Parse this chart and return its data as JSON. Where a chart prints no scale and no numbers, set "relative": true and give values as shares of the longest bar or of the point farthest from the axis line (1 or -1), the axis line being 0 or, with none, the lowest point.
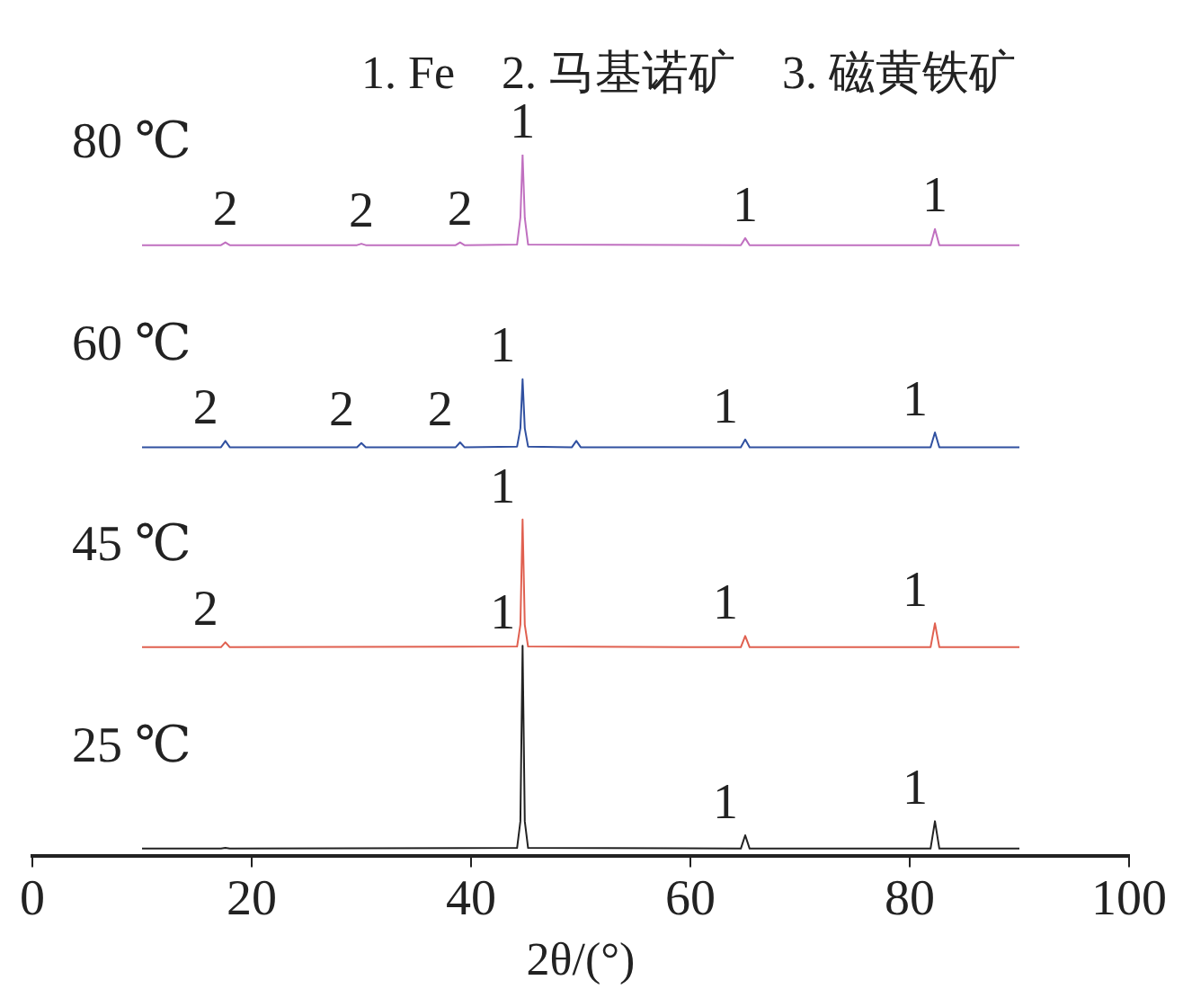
{
  "chart_data": {
    "type": "line",
    "relative": true,
    "xlabel": "2θ/(°)",
    "xlim": [
      0,
      100
    ],
    "xticks": [
      0,
      20,
      40,
      60,
      80,
      100
    ],
    "grid": false,
    "legend": false,
    "marker": "none",
    "line_style": "solid",
    "series": [
      {
        "name": "25 ℃",
        "color": "#222222",
        "x": [
          10,
          17.2,
          17.6,
          18.0,
          44.2,
          44.5,
          44.7,
          44.9,
          45.2,
          64.6,
          65,
          65.4,
          81.9,
          82.3,
          82.7,
          90
        ],
        "values": [
          0.011,
          0.011,
          0.012,
          0.011,
          0.012,
          0.05,
          0.3,
          0.05,
          0.012,
          0.011,
          0.03,
          0.011,
          0.011,
          0.05,
          0.011,
          0.011
        ]
      },
      {
        "name": "45 ℃",
        "color": "#e06050",
        "x": [
          10,
          17.2,
          17.6,
          18.0,
          44.2,
          44.5,
          44.7,
          44.9,
          45.2,
          64.6,
          65,
          65.4,
          81.9,
          82.3,
          82.7,
          90
        ],
        "values": [
          0.298,
          0.298,
          0.305,
          0.298,
          0.299,
          0.33,
          0.48,
          0.33,
          0.299,
          0.298,
          0.314,
          0.298,
          0.298,
          0.332,
          0.298,
          0.298
        ]
      },
      {
        "name": "60 ℃",
        "color": "#3050a0",
        "x": [
          10,
          17.2,
          17.6,
          18.0,
          29.6,
          30,
          30.4,
          38.6,
          39,
          39.4,
          44.2,
          44.5,
          44.7,
          44.9,
          45.2,
          49.2,
          49.6,
          50,
          64.6,
          65,
          65.4,
          81.9,
          82.3,
          82.7,
          90
        ],
        "values": [
          0.583,
          0.583,
          0.592,
          0.583,
          0.583,
          0.589,
          0.583,
          0.583,
          0.59,
          0.583,
          0.584,
          0.61,
          0.68,
          0.61,
          0.584,
          0.583,
          0.592,
          0.583,
          0.583,
          0.594,
          0.583,
          0.583,
          0.604,
          0.583,
          0.583
        ]
      },
      {
        "name": "80 ℃",
        "color": "#c070c0",
        "x": [
          10,
          17.2,
          17.6,
          18.0,
          29.6,
          30,
          30.4,
          38.6,
          39,
          39.4,
          44.2,
          44.5,
          44.7,
          44.9,
          45.2,
          64.6,
          65,
          65.4,
          81.9,
          82.3,
          82.7,
          90
        ],
        "values": [
          0.871,
          0.871,
          0.875,
          0.871,
          0.871,
          0.873,
          0.871,
          0.871,
          0.875,
          0.871,
          0.872,
          0.91,
          1.0,
          0.91,
          0.872,
          0.871,
          0.881,
          0.871,
          0.871,
          0.894,
          0.871,
          0.871
        ]
      }
    ],
    "annotations": [
      "1. Fe    2. 马基诺矿    3. 磁黄铁矿",
      {
        "text": "1",
        "x": 44.7,
        "y": 0.3
      },
      {
        "text": "1",
        "x": 65,
        "y": 0.03
      },
      {
        "text": "1",
        "x": 82.3,
        "y": 0.05
      },
      {
        "text": "2",
        "x": 17.6,
        "y": 0.305
      },
      {
        "text": "1",
        "x": 44.7,
        "y": 0.48
      },
      {
        "text": "1",
        "x": 65,
        "y": 0.314
      },
      {
        "text": "1",
        "x": 82.3,
        "y": 0.332
      },
      {
        "text": "2",
        "x": 17.6,
        "y": 0.592
      },
      {
        "text": "2",
        "x": 30,
        "y": 0.589
      },
      {
        "text": "2",
        "x": 39,
        "y": 0.59
      },
      {
        "text": "1",
        "x": 44.7,
        "y": 0.68
      },
      {
        "text": "1",
        "x": 65,
        "y": 0.594
      },
      {
        "text": "1",
        "x": 82.3,
        "y": 0.604
      },
      {
        "text": "2",
        "x": 17.6,
        "y": 0.875
      },
      {
        "text": "2",
        "x": 30,
        "y": 0.873
      },
      {
        "text": "2",
        "x": 39,
        "y": 0.875
      },
      {
        "text": "1",
        "x": 44.7,
        "y": 1.0
      },
      {
        "text": "1",
        "x": 65,
        "y": 0.881
      },
      {
        "text": "1",
        "x": 82.3,
        "y": 0.894
      }
    ]
  }
}
